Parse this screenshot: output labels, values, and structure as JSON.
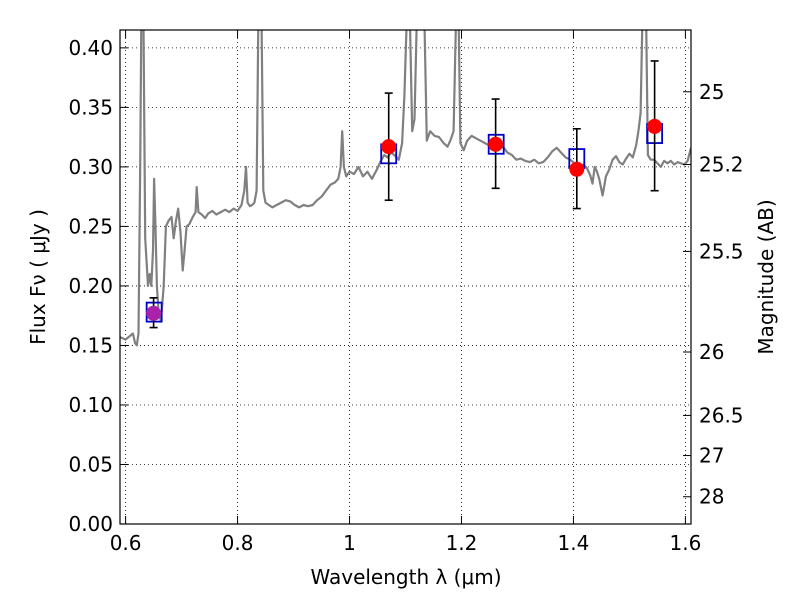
{
  "chart_data": {
    "type": "line",
    "xlabel": "Wavelength  λ (μm)",
    "ylabel": "Flux  Fν  ( μJy )",
    "ylabel_right": "Magnitude (AB)",
    "xlim": [
      0.59,
      1.61
    ],
    "ylim": [
      0.0,
      0.415
    ],
    "grid": true,
    "xticks": [
      0.6,
      0.8,
      1.0,
      1.2,
      1.4,
      1.6
    ],
    "xtick_labels": [
      "0.6",
      "0.8",
      "1",
      "1.2",
      "1.4",
      "1.6"
    ],
    "yticks": [
      0.0,
      0.05,
      0.1,
      0.15,
      0.2,
      0.25,
      0.3,
      0.35,
      0.4
    ],
    "ytick_labels": [
      "0.00",
      "0.05",
      "0.10",
      "0.15",
      "0.20",
      "0.25",
      "0.30",
      "0.35",
      "0.40"
    ],
    "right_ticks": [
      {
        "label": "25",
        "flux": 0.3631
      },
      {
        "label": "25.2",
        "flux": 0.302
      },
      {
        "label": "25.5",
        "flux": 0.229
      },
      {
        "label": "26",
        "flux": 0.1445
      },
      {
        "label": "26.5",
        "flux": 0.0912
      },
      {
        "label": "27",
        "flux": 0.0575
      },
      {
        "label": "28",
        "flux": 0.0229
      }
    ],
    "spectrum": {
      "color": "#808080",
      "points": [
        [
          0.59,
          0.157
        ],
        [
          0.6,
          0.155
        ],
        [
          0.608,
          0.158
        ],
        [
          0.613,
          0.16
        ],
        [
          0.617,
          0.152
        ],
        [
          0.62,
          0.15
        ],
        [
          0.623,
          0.16
        ],
        [
          0.626,
          0.3
        ],
        [
          0.628,
          0.42
        ],
        [
          0.632,
          0.42
        ],
        [
          0.635,
          0.24
        ],
        [
          0.64,
          0.2
        ],
        [
          0.643,
          0.21
        ],
        [
          0.646,
          0.2
        ],
        [
          0.649,
          0.23
        ],
        [
          0.651,
          0.29
        ],
        [
          0.653,
          0.255
        ],
        [
          0.656,
          0.2
        ],
        [
          0.659,
          0.178
        ],
        [
          0.663,
          0.17
        ],
        [
          0.668,
          0.2
        ],
        [
          0.672,
          0.25
        ],
        [
          0.677,
          0.255
        ],
        [
          0.682,
          0.258
        ],
        [
          0.686,
          0.24
        ],
        [
          0.69,
          0.255
        ],
        [
          0.694,
          0.265
        ],
        [
          0.698,
          0.245
        ],
        [
          0.702,
          0.213
        ],
        [
          0.705,
          0.228
        ],
        [
          0.709,
          0.25
        ],
        [
          0.714,
          0.252
        ],
        [
          0.72,
          0.258
        ],
        [
          0.725,
          0.262
        ],
        [
          0.727,
          0.283
        ],
        [
          0.73,
          0.262
        ],
        [
          0.736,
          0.26
        ],
        [
          0.742,
          0.257
        ],
        [
          0.748,
          0.261
        ],
        [
          0.755,
          0.263
        ],
        [
          0.762,
          0.26
        ],
        [
          0.77,
          0.262
        ],
        [
          0.778,
          0.264
        ],
        [
          0.785,
          0.262
        ],
        [
          0.793,
          0.265
        ],
        [
          0.8,
          0.263
        ],
        [
          0.807,
          0.268
        ],
        [
          0.812,
          0.28
        ],
        [
          0.815,
          0.3
        ],
        [
          0.818,
          0.27
        ],
        [
          0.822,
          0.267
        ],
        [
          0.826,
          0.268
        ],
        [
          0.83,
          0.27
        ],
        [
          0.834,
          0.28
        ],
        [
          0.837,
          0.42
        ],
        [
          0.843,
          0.42
        ],
        [
          0.846,
          0.28
        ],
        [
          0.85,
          0.27
        ],
        [
          0.856,
          0.268
        ],
        [
          0.862,
          0.266
        ],
        [
          0.87,
          0.268
        ],
        [
          0.878,
          0.27
        ],
        [
          0.886,
          0.272
        ],
        [
          0.894,
          0.271
        ],
        [
          0.902,
          0.268
        ],
        [
          0.91,
          0.266
        ],
        [
          0.918,
          0.268
        ],
        [
          0.926,
          0.267
        ],
        [
          0.934,
          0.268
        ],
        [
          0.942,
          0.272
        ],
        [
          0.95,
          0.275
        ],
        [
          0.958,
          0.28
        ],
        [
          0.966,
          0.285
        ],
        [
          0.974,
          0.287
        ],
        [
          0.98,
          0.29
        ],
        [
          0.984,
          0.3
        ],
        [
          0.987,
          0.33
        ],
        [
          0.99,
          0.3
        ],
        [
          0.994,
          0.292
        ],
        [
          1.0,
          0.296
        ],
        [
          1.008,
          0.294
        ],
        [
          1.016,
          0.3
        ],
        [
          1.024,
          0.292
        ],
        [
          1.032,
          0.296
        ],
        [
          1.04,
          0.29
        ],
        [
          1.048,
          0.297
        ],
        [
          1.056,
          0.305
        ],
        [
          1.062,
          0.31
        ],
        [
          1.068,
          0.308
        ],
        [
          1.074,
          0.312
        ],
        [
          1.08,
          0.31
        ],
        [
          1.088,
          0.306
        ],
        [
          1.094,
          0.32
        ],
        [
          1.098,
          0.36
        ],
        [
          1.102,
          0.42
        ],
        [
          1.108,
          0.42
        ],
        [
          1.112,
          0.33
        ],
        [
          1.116,
          0.34
        ],
        [
          1.12,
          0.42
        ],
        [
          1.134,
          0.42
        ],
        [
          1.138,
          0.322
        ],
        [
          1.144,
          0.33
        ],
        [
          1.152,
          0.326
        ],
        [
          1.16,
          0.325
        ],
        [
          1.168,
          0.32
        ],
        [
          1.175,
          0.317
        ],
        [
          1.18,
          0.322
        ],
        [
          1.186,
          0.33
        ],
        [
          1.19,
          0.42
        ],
        [
          1.195,
          0.42
        ],
        [
          1.198,
          0.32
        ],
        [
          1.204,
          0.314
        ],
        [
          1.21,
          0.322
        ],
        [
          1.218,
          0.326
        ],
        [
          1.226,
          0.324
        ],
        [
          1.234,
          0.322
        ],
        [
          1.242,
          0.32
        ],
        [
          1.25,
          0.318
        ],
        [
          1.258,
          0.32
        ],
        [
          1.266,
          0.315
        ],
        [
          1.274,
          0.317
        ],
        [
          1.282,
          0.312
        ],
        [
          1.29,
          0.31
        ],
        [
          1.298,
          0.306
        ],
        [
          1.306,
          0.307
        ],
        [
          1.314,
          0.305
        ],
        [
          1.322,
          0.304
        ],
        [
          1.33,
          0.306
        ],
        [
          1.338,
          0.303
        ],
        [
          1.346,
          0.304
        ],
        [
          1.354,
          0.308
        ],
        [
          1.362,
          0.313
        ],
        [
          1.37,
          0.316
        ],
        [
          1.378,
          0.312
        ],
        [
          1.386,
          0.308
        ],
        [
          1.394,
          0.306
        ],
        [
          1.402,
          0.303
        ],
        [
          1.41,
          0.3
        ],
        [
          1.418,
          0.302
        ],
        [
          1.424,
          0.299
        ],
        [
          1.43,
          0.293
        ],
        [
          1.434,
          0.286
        ],
        [
          1.438,
          0.3
        ],
        [
          1.442,
          0.296
        ],
        [
          1.446,
          0.29
        ],
        [
          1.452,
          0.276
        ],
        [
          1.458,
          0.292
        ],
        [
          1.464,
          0.298
        ],
        [
          1.47,
          0.306
        ],
        [
          1.476,
          0.309
        ],
        [
          1.482,
          0.304
        ],
        [
          1.488,
          0.302
        ],
        [
          1.494,
          0.307
        ],
        [
          1.5,
          0.311
        ],
        [
          1.506,
          0.308
        ],
        [
          1.512,
          0.318
        ],
        [
          1.516,
          0.33
        ],
        [
          1.52,
          0.345
        ],
        [
          1.523,
          0.42
        ],
        [
          1.53,
          0.42
        ],
        [
          1.533,
          0.31
        ],
        [
          1.538,
          0.306
        ],
        [
          1.544,
          0.306
        ],
        [
          1.55,
          0.303
        ],
        [
          1.556,
          0.3
        ],
        [
          1.562,
          0.305
        ],
        [
          1.568,
          0.303
        ],
        [
          1.574,
          0.305
        ],
        [
          1.58,
          0.302
        ],
        [
          1.586,
          0.304
        ],
        [
          1.592,
          0.303
        ],
        [
          1.598,
          0.302
        ],
        [
          1.604,
          0.305
        ],
        [
          1.61,
          0.316
        ]
      ]
    },
    "model_boxes": {
      "color": "#0000cc",
      "points": [
        {
          "x": 0.651,
          "y": 0.178
        },
        {
          "x": 1.07,
          "y": 0.311
        },
        {
          "x": 1.262,
          "y": 0.319
        },
        {
          "x": 1.406,
          "y": 0.307
        },
        {
          "x": 1.545,
          "y": 0.328
        }
      ]
    },
    "observed": {
      "color": "#ff0000",
      "points": [
        {
          "x": 0.65,
          "y": 0.177,
          "err_low": 0.165,
          "err_high": 0.19,
          "color": "#aa22aa"
        },
        {
          "x": 1.07,
          "y": 0.317,
          "err_low": 0.272,
          "err_high": 0.362
        },
        {
          "x": 1.261,
          "y": 0.319,
          "err_low": 0.282,
          "err_high": 0.357
        },
        {
          "x": 1.406,
          "y": 0.298,
          "err_low": 0.265,
          "err_high": 0.332
        },
        {
          "x": 1.545,
          "y": 0.334,
          "err_low": 0.28,
          "err_high": 0.389
        }
      ]
    }
  }
}
